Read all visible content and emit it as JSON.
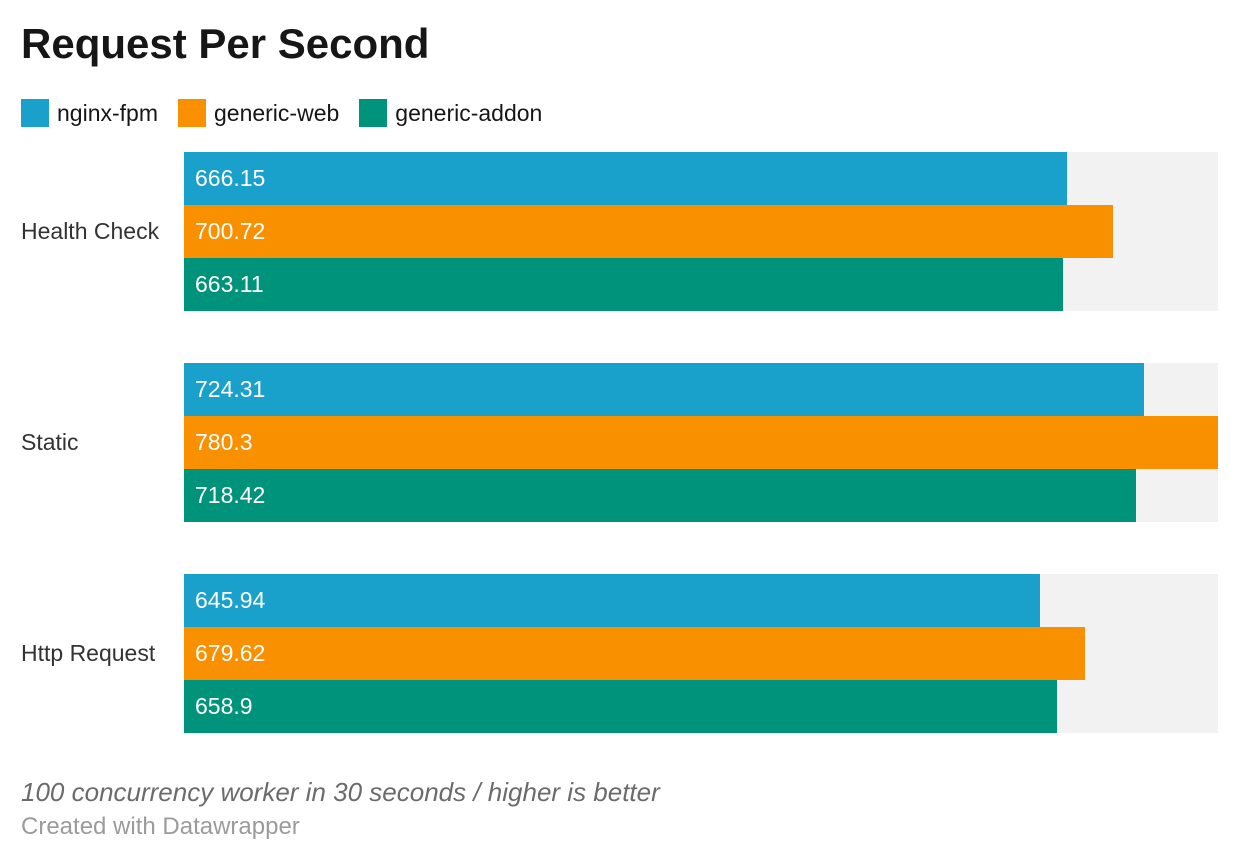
{
  "title": "Request Per Second",
  "footer": {
    "note": "100 concurrency worker in 30 seconds / higher is better",
    "attribution": "Created with Datawrapper"
  },
  "colors": {
    "series_blue": "#1AA1CB",
    "series_orange": "#F99000",
    "series_green": "#00937C",
    "track": "#F2F2F2",
    "title_text": "#161616",
    "category_text": "#333333",
    "value_text": "#FFFFFF",
    "note_text": "#6B6B6B",
    "attribution_text": "#9B9B9B"
  },
  "chart_data": {
    "type": "bar",
    "orientation": "horizontal",
    "title": "Request Per Second",
    "categories": [
      "Health Check",
      "Static",
      "Http Request"
    ],
    "series": [
      {
        "name": "nginx-fpm",
        "color": "#1AA1CB",
        "values": [
          666.15,
          724.31,
          645.94
        ]
      },
      {
        "name": "generic-web",
        "color": "#F99000",
        "values": [
          700.72,
          780.3,
          679.62
        ]
      },
      {
        "name": "generic-addon",
        "color": "#00937C",
        "values": [
          663.11,
          718.42,
          658.9
        ]
      }
    ],
    "xlabel": "",
    "ylabel": "",
    "xlim": [
      0,
      780.3
    ],
    "grid": false,
    "legend_position": "top",
    "value_labels": "inside-start",
    "track_color": "#F2F2F2"
  }
}
